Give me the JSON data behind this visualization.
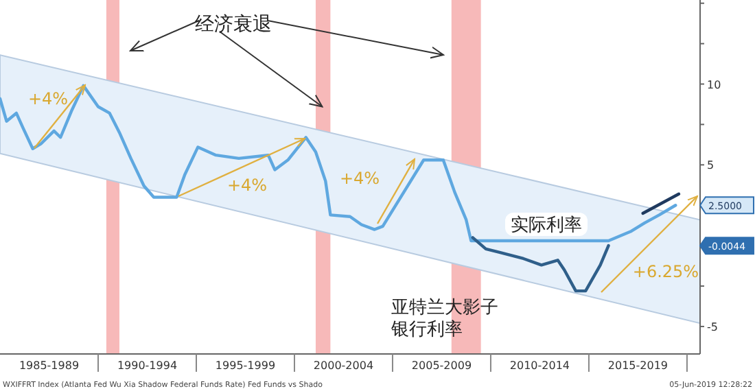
{
  "chart_data": {
    "type": "line",
    "xlim": [
      "1985-01",
      "2020-09"
    ],
    "ylim": [
      -6.7,
      15.2
    ],
    "xticks": [
      {
        "value": "1987-07",
        "label": "1985-1989"
      },
      {
        "value": "1990-01",
        "label": null
      },
      {
        "value": "1992-07",
        "label": "1990-1994"
      },
      {
        "value": "1995-01",
        "label": null
      },
      {
        "value": "1997-07",
        "label": "1995-1999"
      },
      {
        "value": "2000-01",
        "label": null
      },
      {
        "value": "2002-07",
        "label": "2000-2004"
      },
      {
        "value": "2005-01",
        "label": null
      },
      {
        "value": "2007-07",
        "label": "2005-2009"
      },
      {
        "value": "2010-01",
        "label": null
      },
      {
        "value": "2012-07",
        "label": "2010-2014"
      },
      {
        "value": "2015-01",
        "label": null
      },
      {
        "value": "2017-07",
        "label": "2015-2019"
      },
      {
        "value": "2020-01",
        "label": null
      }
    ],
    "yticks": [
      {
        "value": 15,
        "label": null
      },
      {
        "value": 12.5,
        "label": null
      },
      10,
      {
        "value": 7.5,
        "label": null
      },
      5,
      {
        "value": 2.5,
        "label": null
      },
      {
        "value": 0,
        "label": null
      },
      {
        "value": -2.5,
        "label": null
      },
      -5
    ],
    "series": [
      {
        "type": "area",
        "color": "#e6f0fa",
        "x": [
          "1985-01",
          "2020-09"
        ],
        "values": [
          null,
          null
        ],
        "lower": [
          5.7,
          -4.8
        ],
        "upper": [
          11.8,
          1.6
        ]
      },
      {
        "name": "实际利率",
        "color": "#5fa8e0",
        "x": [
          "1985-01",
          "1985-05",
          "1985-11",
          "1986-03",
          "1986-09",
          "1987-02",
          "1987-10",
          "1988-02",
          "1988-09",
          "1989-04",
          "1990-01",
          "1990-08",
          "1991-02",
          "1991-09",
          "1992-05",
          "1992-11",
          "1994-01",
          "1994-06",
          "1995-02",
          "1996-01",
          "1997-03",
          "1998-09",
          "1999-01",
          "1999-09",
          "2000-08",
          "2001-02",
          "2001-08",
          "2001-11",
          "2002-11",
          "2003-06",
          "2004-02",
          "2004-07",
          "2006-08",
          "2007-08",
          "2008-03",
          "2008-10",
          "2009-01",
          "2016-01",
          "2017-03",
          "2017-11",
          "2018-08",
          "2019-06"
        ],
        "values": [
          9.1,
          7.7,
          8.2,
          7.3,
          6.0,
          6.3,
          7.1,
          6.7,
          8.4,
          9.9,
          8.6,
          8.2,
          7.0,
          5.4,
          3.7,
          3.0,
          3.0,
          4.4,
          6.1,
          5.6,
          5.4,
          5.6,
          4.7,
          5.3,
          6.7,
          5.8,
          4.0,
          1.9,
          1.8,
          1.3,
          1.0,
          1.2,
          5.3,
          5.3,
          3.3,
          1.6,
          0.3,
          0.3,
          0.9,
          1.4,
          1.9,
          2.5
        ]
      },
      {
        "name": "亚特兰大影子银行利率",
        "color": "#2f5f8a",
        "x": [
          "2009-02",
          "2009-10",
          "2010-06",
          "2011-09",
          "2012-08",
          "2013-06",
          "2013-10",
          "2014-05",
          "2014-11",
          "2015-08",
          "2016-01"
        ],
        "values": [
          0.5,
          -0.2,
          -0.4,
          -0.8,
          -1.2,
          -0.9,
          -1.5,
          -2.8,
          -2.8,
          -1.2,
          0.0
        ]
      },
      {
        "color": "#1f3a5f",
        "x": [
          "2017-10",
          "2019-08"
        ],
        "values": [
          2.0,
          3.2
        ]
      }
    ],
    "bands": [
      {
        "axis": "x",
        "from": "1990-06",
        "to": "1991-02",
        "color": "#f7b9b9"
      },
      {
        "axis": "x",
        "from": "2001-02",
        "to": "2001-11",
        "color": "#f7b9b9"
      },
      {
        "axis": "x",
        "from": "2008-01",
        "to": "2009-07",
        "color": "#f7b9b9"
      }
    ],
    "annotations": [
      "+4%",
      "+4%",
      "+4%",
      "+6.25%",
      {
        "text": "经济衰退",
        "x": "2001-06",
        "y": 8.6
      },
      "2.5000",
      "-0.0044",
      "WXIFFRT Index (Atlanta Fed Wu Xia Shadow Federal Funds Rate) Fed Funds vs Shado",
      "05-Jun-2019 12:28:22"
    ],
    "grid": false,
    "legend": false
  }
}
